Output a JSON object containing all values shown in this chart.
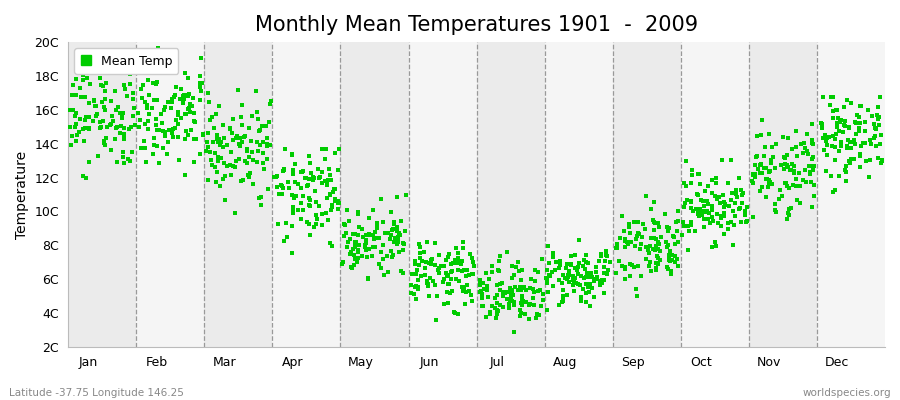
{
  "title": "Monthly Mean Temperatures 1901  -  2009",
  "ylabel": "Temperature",
  "lat_lon_text": "Latitude -37.75 Longitude 146.25",
  "watermark": "worldspecies.org",
  "months": [
    "Jan",
    "Feb",
    "Mar",
    "Apr",
    "May",
    "Jun",
    "Jul",
    "Aug",
    "Sep",
    "Oct",
    "Nov",
    "Dec"
  ],
  "ytick_labels": [
    "2C",
    "4C",
    "6C",
    "8C",
    "10C",
    "12C",
    "14C",
    "16C",
    "18C",
    "20C"
  ],
  "ytick_values": [
    2,
    4,
    6,
    8,
    10,
    12,
    14,
    16,
    18,
    20
  ],
  "ylim": [
    2,
    20
  ],
  "dot_color": "#00cc00",
  "background_color": "#ffffff",
  "title_fontsize": 15,
  "axis_label_fontsize": 10,
  "tick_fontsize": 9,
  "legend_label": "Mean Temp",
  "num_years": 109,
  "mean_temps": [
    15.5,
    15.8,
    13.8,
    11.0,
    8.2,
    6.2,
    5.2,
    6.2,
    8.0,
    10.2,
    12.5,
    14.5
  ],
  "std_temps": [
    1.4,
    1.5,
    1.4,
    1.3,
    1.0,
    0.9,
    0.9,
    0.8,
    1.0,
    1.1,
    1.3,
    1.4
  ],
  "band_colors": [
    "#ebebeb",
    "#f5f5f5",
    "#ebebeb",
    "#f5f5f5",
    "#ebebeb",
    "#f5f5f5",
    "#ebebeb",
    "#f5f5f5",
    "#ebebeb",
    "#f5f5f5",
    "#ebebeb",
    "#f5f5f5"
  ]
}
